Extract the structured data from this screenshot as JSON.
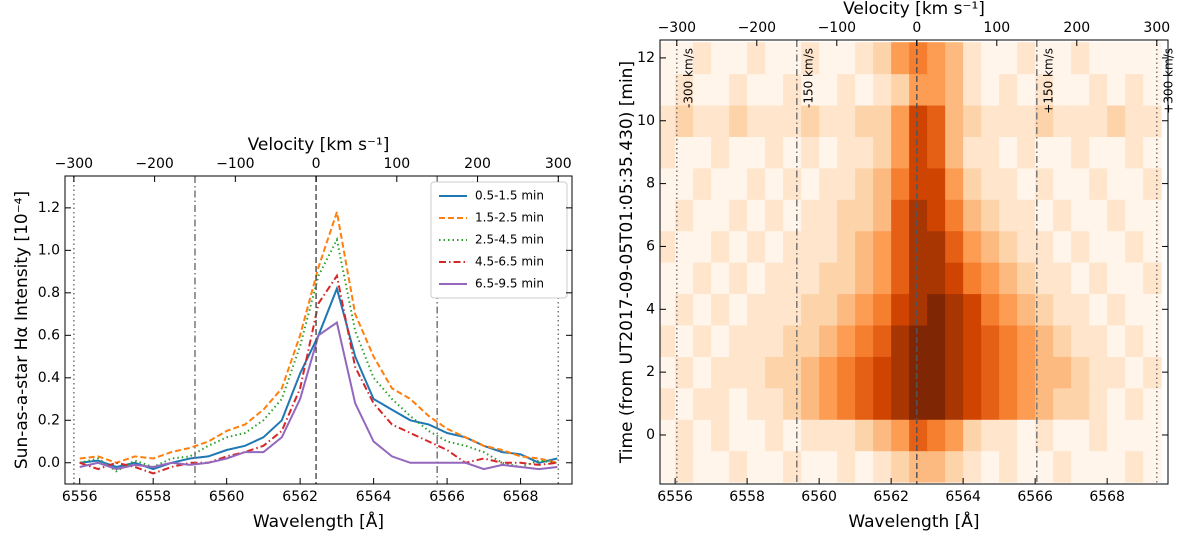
{
  "chart_data": [
    {
      "type": "line",
      "xlabel": "Wavelength [Å]",
      "x2label": "Velocity [km s⁻¹]",
      "ylabel": "Sun-as-a-star Hα Intensity [10⁻⁴]",
      "x": [
        6556,
        6556.5,
        6557,
        6557.5,
        6558,
        6558.5,
        6559,
        6559.5,
        6560,
        6560.5,
        6561,
        6561.5,
        6562,
        6562.5,
        6563,
        6563.5,
        6564,
        6564.5,
        6565,
        6565.5,
        6566,
        6566.5,
        6567,
        6567.5,
        6568,
        6568.5,
        6569
      ],
      "series": [
        {
          "name": "0.5-1.5 min",
          "color": "#1f77b4",
          "dash": "solid",
          "values": [
            0.0,
            0.01,
            -0.02,
            0.0,
            -0.03,
            0.0,
            0.02,
            0.03,
            0.06,
            0.08,
            0.12,
            0.2,
            0.42,
            0.6,
            0.82,
            0.5,
            0.3,
            0.25,
            0.2,
            0.18,
            0.14,
            0.12,
            0.08,
            0.05,
            0.04,
            0.0,
            0.02
          ]
        },
        {
          "name": "1.5-2.5 min",
          "color": "#ff7f0e",
          "dash": "dashed",
          "values": [
            0.02,
            0.03,
            0.0,
            0.03,
            0.02,
            0.05,
            0.07,
            0.1,
            0.15,
            0.18,
            0.25,
            0.35,
            0.6,
            0.92,
            1.18,
            0.7,
            0.5,
            0.35,
            0.3,
            0.22,
            0.16,
            0.12,
            0.08,
            0.06,
            0.03,
            0.02,
            0.0
          ]
        },
        {
          "name": "2.5-4.5 min",
          "color": "#2ca02c",
          "dash": "dotted",
          "values": [
            0.0,
            0.02,
            -0.04,
            0.01,
            -0.02,
            0.02,
            0.03,
            0.08,
            0.12,
            0.14,
            0.2,
            0.3,
            0.55,
            0.88,
            1.05,
            0.62,
            0.4,
            0.3,
            0.22,
            0.15,
            0.1,
            0.08,
            0.05,
            0.0,
            -0.02,
            0.01,
            0.0
          ]
        },
        {
          "name": "4.5-6.5 min",
          "color": "#d62728",
          "dash": "dashdot",
          "values": [
            0.0,
            -0.03,
            0.0,
            -0.02,
            -0.05,
            -0.02,
            0.0,
            0.0,
            0.03,
            0.05,
            0.08,
            0.15,
            0.35,
            0.75,
            0.88,
            0.45,
            0.28,
            0.18,
            0.14,
            0.1,
            0.06,
            0.0,
            0.02,
            0.0,
            0.0,
            -0.01,
            0.0
          ]
        },
        {
          "name": "6.5-9.5 min",
          "color": "#9467bd",
          "dash": "solid",
          "values": [
            -0.02,
            0.0,
            -0.03,
            -0.01,
            -0.02,
            0.0,
            -0.01,
            0.0,
            0.02,
            0.05,
            0.05,
            0.12,
            0.3,
            0.6,
            0.66,
            0.28,
            0.1,
            0.03,
            0.0,
            0.0,
            0.0,
            0.0,
            -0.03,
            -0.01,
            -0.02,
            -0.03,
            -0.02
          ]
        }
      ],
      "xlim": [
        6555.6,
        6569.4
      ],
      "xticks": [
        6556,
        6558,
        6560,
        6562,
        6564,
        6566,
        6568
      ],
      "x2lim": [
        -311,
        317
      ],
      "x2ticks": [
        {
          "value": -300,
          "label": "−300"
        },
        {
          "value": -200,
          "label": "−200"
        },
        {
          "value": -100,
          "label": "−100"
        },
        0,
        100,
        200,
        300
      ],
      "ylim": [
        -0.1,
        1.35
      ],
      "yticks": [
        {
          "value": 0,
          "label": "0.0"
        },
        0.2,
        0.4,
        0.6,
        0.8,
        {
          "value": 1,
          "label": "1.0"
        },
        1.2
      ],
      "vlines": [
        {
          "value": -300,
          "style": "dotted"
        },
        {
          "value": -150,
          "style": "dashdot"
        },
        {
          "value": 0,
          "style": "dashed"
        },
        {
          "value": 150,
          "style": "dashdot"
        },
        {
          "value": 300,
          "style": "dotted"
        }
      ],
      "legend": "upper right"
    },
    {
      "type": "heatmap",
      "xlabel": "Wavelength [Å]",
      "x2label": "Velocity [km s⁻¹]",
      "ylabel": "Time (from UT2017-09-05T01:05:35.430) [min]",
      "colormap": "Oranges",
      "xbins": [
        6555.5,
        6556,
        6556.5,
        6557,
        6557.5,
        6558,
        6558.5,
        6559,
        6559.5,
        6560,
        6560.5,
        6561,
        6561.5,
        6562,
        6562.5,
        6563,
        6563.5,
        6564,
        6564.5,
        6565,
        6565.5,
        6566,
        6566.5,
        6567,
        6567.5,
        6568,
        6568.5,
        6569,
        6569.5
      ],
      "ybins": [
        -1.5,
        -0.5,
        0.5,
        1.5,
        2.5,
        3.5,
        4.5,
        5.5,
        6.5,
        7.5,
        8.5,
        9.5,
        10.5,
        11.5,
        12.5
      ],
      "zlim": [
        0,
        9
      ],
      "z": [
        [
          0,
          1,
          0,
          0,
          1,
          0,
          0,
          1,
          0,
          0,
          1,
          0,
          1,
          2,
          3,
          3,
          2,
          1,
          0,
          1,
          0,
          0,
          1,
          0,
          0,
          0,
          1,
          0
        ],
        [
          0,
          1,
          0,
          1,
          0,
          0,
          1,
          0,
          1,
          1,
          1,
          2,
          3,
          4,
          6,
          5,
          4,
          2,
          1,
          1,
          0,
          1,
          0,
          0,
          1,
          0,
          0,
          0
        ],
        [
          1,
          0,
          1,
          1,
          0,
          1,
          1,
          2,
          3,
          4,
          5,
          6,
          7,
          8,
          9,
          9,
          8,
          7,
          6,
          5,
          4,
          3,
          2,
          2,
          1,
          0,
          1,
          0
        ],
        [
          0,
          1,
          0,
          1,
          1,
          1,
          2,
          2,
          3,
          4,
          5,
          6,
          7,
          8,
          9,
          9,
          8,
          7,
          6,
          5,
          4,
          3,
          3,
          2,
          1,
          1,
          0,
          1
        ],
        [
          1,
          0,
          1,
          0,
          1,
          1,
          1,
          2,
          2,
          3,
          4,
          5,
          6,
          8,
          9,
          9,
          8,
          7,
          6,
          5,
          4,
          3,
          2,
          1,
          1,
          0,
          1,
          0
        ],
        [
          0,
          1,
          0,
          1,
          0,
          1,
          1,
          1,
          2,
          2,
          3,
          4,
          5,
          7,
          8,
          9,
          8,
          7,
          5,
          4,
          3,
          2,
          1,
          1,
          0,
          1,
          0,
          0
        ],
        [
          0,
          0,
          1,
          0,
          1,
          0,
          1,
          1,
          1,
          2,
          2,
          3,
          4,
          6,
          8,
          8,
          7,
          5,
          4,
          3,
          2,
          1,
          1,
          0,
          1,
          0,
          0,
          1
        ],
        [
          1,
          0,
          0,
          1,
          0,
          1,
          0,
          1,
          1,
          1,
          2,
          3,
          4,
          6,
          8,
          8,
          6,
          4,
          3,
          2,
          1,
          1,
          0,
          1,
          0,
          0,
          1,
          0
        ],
        [
          0,
          1,
          0,
          0,
          1,
          0,
          1,
          0,
          1,
          1,
          2,
          2,
          3,
          6,
          8,
          7,
          5,
          3,
          2,
          1,
          1,
          0,
          1,
          0,
          0,
          1,
          0,
          0
        ],
        [
          0,
          0,
          1,
          0,
          0,
          1,
          0,
          1,
          0,
          1,
          1,
          2,
          3,
          5,
          7,
          7,
          4,
          2,
          1,
          1,
          0,
          1,
          0,
          0,
          1,
          0,
          0,
          1
        ],
        [
          1,
          0,
          0,
          1,
          0,
          0,
          1,
          0,
          1,
          0,
          1,
          1,
          2,
          4,
          7,
          6,
          3,
          1,
          1,
          0,
          1,
          0,
          0,
          1,
          0,
          0,
          1,
          0
        ],
        [
          1,
          2,
          1,
          1,
          2,
          1,
          1,
          1,
          2,
          1,
          1,
          2,
          2,
          4,
          7,
          6,
          3,
          2,
          1,
          1,
          1,
          2,
          1,
          1,
          1,
          2,
          1,
          1
        ],
        [
          0,
          1,
          0,
          0,
          1,
          0,
          0,
          1,
          0,
          0,
          1,
          0,
          1,
          2,
          4,
          4,
          3,
          1,
          0,
          1,
          0,
          1,
          0,
          0,
          1,
          0,
          1,
          0
        ],
        [
          0,
          0,
          1,
          0,
          0,
          1,
          0,
          0,
          1,
          0,
          0,
          1,
          2,
          4,
          5,
          4,
          3,
          1,
          0,
          0,
          1,
          0,
          0,
          1,
          0,
          0,
          0,
          0
        ]
      ],
      "xlim": [
        6555.58,
        6569.69
      ],
      "xticks": [
        6556,
        6558,
        6560,
        6562,
        6564,
        6566,
        6568
      ],
      "x2lim": [
        -321,
        314
      ],
      "x2ticks": [
        {
          "value": -300,
          "label": "−300"
        },
        {
          "value": -200,
          "label": "−200"
        },
        {
          "value": -100,
          "label": "−100"
        },
        0,
        100,
        200,
        300
      ],
      "ylim": [
        -1.56,
        12.57
      ],
      "yticks": [
        0,
        2,
        4,
        6,
        8,
        10,
        12
      ],
      "vlines": [
        {
          "value": -300,
          "style": "dotted",
          "label": "-300 km/s"
        },
        {
          "value": -150,
          "style": "dashdot",
          "label": "-150 km/s"
        },
        {
          "value": 0,
          "style": "dashed"
        },
        {
          "value": 150,
          "style": "dashdot",
          "label": "+150 km/s"
        },
        {
          "value": 300,
          "style": "dotted",
          "label": "+300 km/s"
        }
      ]
    }
  ]
}
